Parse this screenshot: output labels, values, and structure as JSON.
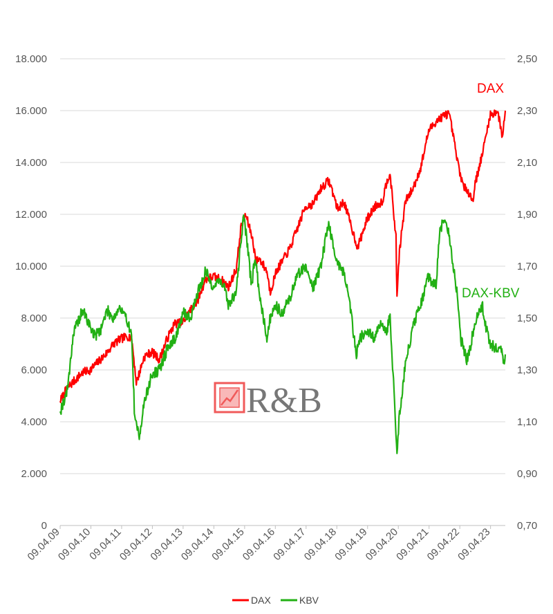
{
  "chart_data": {
    "type": "line",
    "title": "",
    "colors": {
      "dax": "#ff0000",
      "kbv": "#22b014",
      "grid": "#d9d9d9",
      "axis": "#bfbfbf",
      "logo_accent": "#f05a5a"
    },
    "x_ticks": [
      "09.04.09",
      "09.04.10",
      "09.04.11",
      "09.04.12",
      "09.04.13",
      "09.04.14",
      "09.04.15",
      "09.04.16",
      "09.04.17",
      "09.04.18",
      "09.04.19",
      "09.04.20",
      "09.04.21",
      "09.04.22",
      "09.04.23"
    ],
    "y_left": {
      "ylim": [
        0,
        18000
      ],
      "ticks": [
        "0",
        "2.000",
        "4.000",
        "6.000",
        "8.000",
        "10.000",
        "12.000",
        "14.000",
        "16.000",
        "18.000"
      ]
    },
    "y_right": {
      "ylim": [
        0.7,
        2.5
      ],
      "ticks": [
        "0,70",
        "0,90",
        "1,10",
        "1,30",
        "1,50",
        "1,70",
        "1,90",
        "2,10",
        "2,30",
        "2,50"
      ]
    },
    "series": [
      {
        "name": "DAX",
        "axis": "left",
        "x": [
          2009.27,
          2009.5,
          2009.75,
          2010.0,
          2010.25,
          2010.5,
          2010.75,
          2011.0,
          2011.25,
          2011.5,
          2011.6,
          2011.75,
          2012.0,
          2012.25,
          2012.5,
          2012.75,
          2013.0,
          2013.25,
          2013.5,
          2013.75,
          2014.0,
          2014.25,
          2014.5,
          2014.75,
          2015.0,
          2015.15,
          2015.3,
          2015.5,
          2015.65,
          2015.75,
          2016.0,
          2016.1,
          2016.3,
          2016.5,
          2016.75,
          2017.0,
          2017.25,
          2017.5,
          2017.75,
          2018.0,
          2018.1,
          2018.3,
          2018.5,
          2018.75,
          2018.95,
          2019.0,
          2019.25,
          2019.5,
          2019.75,
          2019.9,
          2020.0,
          2020.2,
          2020.22,
          2020.3,
          2020.5,
          2020.75,
          2021.0,
          2021.25,
          2021.5,
          2021.75,
          2021.9,
          2022.0,
          2022.2,
          2022.4,
          2022.5,
          2022.7,
          2022.75,
          2023.0,
          2023.25,
          2023.5,
          2023.65,
          2023.75
        ],
        "values": [
          4800,
          5300,
          5600,
          5900,
          6000,
          6300,
          6600,
          7000,
          7200,
          7300,
          7200,
          5500,
          6500,
          6700,
          6400,
          7200,
          7800,
          7800,
          8300,
          8700,
          9500,
          9600,
          9500,
          9200,
          9900,
          11500,
          12000,
          11200,
          10200,
          10300,
          9800,
          9000,
          9800,
          10200,
          10700,
          11500,
          12300,
          12400,
          13000,
          13300,
          13000,
          12200,
          12500,
          11500,
          10700,
          10900,
          11800,
          12300,
          12500,
          13300,
          13600,
          11000,
          8700,
          10500,
          12500,
          13000,
          13800,
          15200,
          15600,
          15800,
          15900,
          15400,
          14000,
          13000,
          13000,
          12500,
          13100,
          14300,
          15800,
          16000,
          15000,
          16000
        ]
      },
      {
        "name": "KBV",
        "axis": "right",
        "x": [
          2009.27,
          2009.5,
          2009.7,
          2010.0,
          2010.2,
          2010.4,
          2010.6,
          2010.8,
          2011.0,
          2011.2,
          2011.5,
          2011.6,
          2011.7,
          2011.85,
          2012.0,
          2012.25,
          2012.5,
          2012.75,
          2013.0,
          2013.3,
          2013.5,
          2013.75,
          2014.0,
          2014.25,
          2014.5,
          2014.6,
          2014.75,
          2015.0,
          2015.15,
          2015.25,
          2015.5,
          2015.6,
          2015.75,
          2016.0,
          2016.1,
          2016.25,
          2016.5,
          2016.75,
          2017.0,
          2017.25,
          2017.5,
          2017.75,
          2018.0,
          2018.25,
          2018.5,
          2018.7,
          2018.9,
          2019.0,
          2019.25,
          2019.5,
          2019.7,
          2019.9,
          2020.0,
          2020.2,
          2020.22,
          2020.3,
          2020.5,
          2020.6,
          2020.75,
          2021.0,
          2021.25,
          2021.5,
          2021.6,
          2021.75,
          2021.9,
          2022.0,
          2022.2,
          2022.3,
          2022.5,
          2022.6,
          2022.75,
          2023.0,
          2023.1,
          2023.25,
          2023.5,
          2023.6,
          2023.7,
          2023.75
        ],
        "values": [
          1.14,
          1.22,
          1.44,
          1.53,
          1.48,
          1.43,
          1.46,
          1.53,
          1.5,
          1.54,
          1.48,
          1.42,
          1.1,
          1.05,
          1.17,
          1.28,
          1.3,
          1.38,
          1.42,
          1.52,
          1.5,
          1.6,
          1.68,
          1.62,
          1.65,
          1.62,
          1.55,
          1.6,
          1.8,
          1.9,
          1.62,
          1.74,
          1.6,
          1.42,
          1.5,
          1.55,
          1.52,
          1.58,
          1.67,
          1.7,
          1.62,
          1.7,
          1.87,
          1.72,
          1.68,
          1.55,
          1.36,
          1.42,
          1.45,
          1.42,
          1.48,
          1.45,
          1.51,
          1.05,
          0.97,
          1.12,
          1.32,
          1.38,
          1.47,
          1.55,
          1.66,
          1.62,
          1.82,
          1.88,
          1.83,
          1.75,
          1.58,
          1.42,
          1.34,
          1.38,
          1.48,
          1.55,
          1.48,
          1.4,
          1.38,
          1.38,
          1.33,
          1.36
        ]
      }
    ],
    "annotations": {
      "dax": "DAX",
      "kbv": "DAX-KBV"
    },
    "legend": {
      "position": "bottom",
      "items": [
        "DAX",
        "KBV"
      ]
    },
    "logo": "R&B",
    "grid": true
  }
}
